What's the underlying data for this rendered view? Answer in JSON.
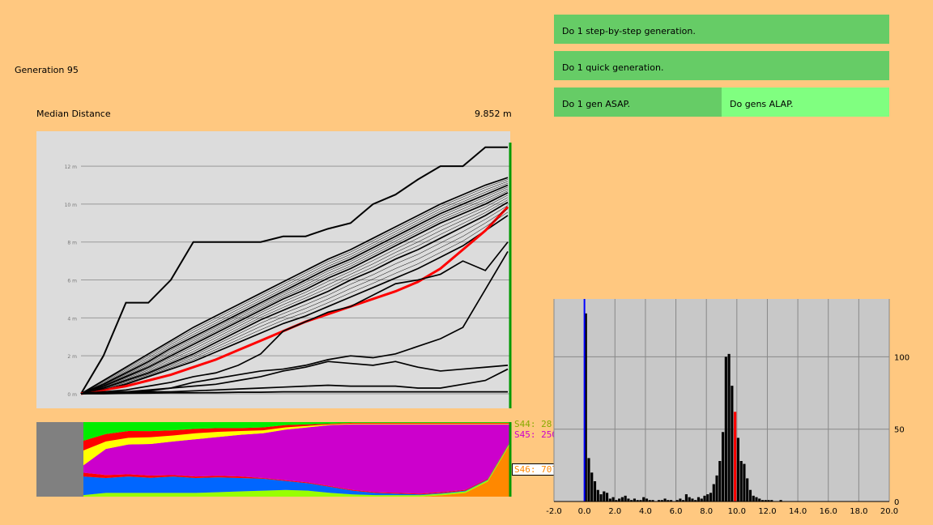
{
  "header": {
    "generation_label": "Generation 95"
  },
  "stat": {
    "label": "Median Distance",
    "value": "9.852 m"
  },
  "buttons": {
    "step_by_step": "Do 1 step-by-step generation.",
    "quick": "Do 1 quick generation.",
    "asap": "Do 1 gen ASAP.",
    "alap": "Do gens ALAP."
  },
  "species": [
    {
      "label": "S44: 28",
      "color": "#88aa00"
    },
    {
      "label": "S45: 250",
      "color": "#cc00cc"
    },
    {
      "label": "S46: 707",
      "color": "#ff8800"
    }
  ],
  "colors": {
    "background": "#ffc880",
    "button": "#66cc66",
    "button_alt": "#80ff80",
    "median_line": "#ff0000",
    "cursor_line": "#009900"
  },
  "chart_data": [
    {
      "type": "line",
      "title": "",
      "ylabel": "",
      "y_ticks": [
        "0 m",
        "2 m",
        "4 m",
        "6 m",
        "8 m",
        "10 m",
        "12 m"
      ],
      "x": [
        0,
        5,
        10,
        15,
        20,
        25,
        30,
        35,
        40,
        45,
        50,
        55,
        60,
        65,
        70,
        75,
        80,
        85,
        90,
        95
      ],
      "ylim": [
        0,
        13.5
      ],
      "xlim": [
        0,
        95
      ],
      "series": [
        {
          "values": [
            0,
            2,
            4.8,
            4.8,
            6,
            8,
            8,
            8,
            8,
            8.3,
            8.3,
            8.7,
            9,
            10,
            10.5,
            11.3,
            12,
            12,
            13,
            13
          ]
        },
        {
          "values": [
            0,
            0.7,
            1.4,
            2.1,
            2.8,
            3.5,
            4.1,
            4.7,
            5.3,
            5.9,
            6.5,
            7.1,
            7.6,
            8.2,
            8.8,
            9.4,
            10,
            10.5,
            11,
            11.4
          ]
        },
        {
          "values": [
            0,
            0.5,
            1.1,
            1.7,
            2.4,
            3.0,
            3.6,
            4.2,
            4.8,
            5.4,
            6.0,
            6.6,
            7.1,
            7.7,
            8.3,
            8.9,
            9.5,
            10,
            10.5,
            11.0
          ]
        },
        {
          "values": [
            0,
            0.4,
            0.9,
            1.4,
            2.0,
            2.6,
            3.2,
            3.8,
            4.4,
            5.0,
            5.5,
            6.1,
            6.6,
            7.2,
            7.8,
            8.4,
            9.0,
            9.5,
            10.0,
            10.6
          ]
        },
        {
          "values": [
            0,
            0.3,
            0.7,
            1.1,
            1.6,
            2.1,
            2.7,
            3.3,
            3.9,
            4.4,
            4.9,
            5.4,
            6.0,
            6.5,
            7.1,
            7.6,
            8.2,
            8.8,
            9.4,
            10.1
          ]
        },
        {
          "values": [
            0,
            0.2,
            0.5,
            0.9,
            1.3,
            1.7,
            2.2,
            2.7,
            3.2,
            3.7,
            4.1,
            4.6,
            5.1,
            5.6,
            6.1,
            6.6,
            7.2,
            7.8,
            8.6,
            9.4
          ]
        },
        {
          "name": "median",
          "values": [
            0,
            0.2,
            0.4,
            0.7,
            1.0,
            1.4,
            1.8,
            2.3,
            2.8,
            3.3,
            3.8,
            4.2,
            4.6,
            5.0,
            5.4,
            5.9,
            6.6,
            7.6,
            8.6,
            9.85
          ]
        },
        {
          "values": [
            0,
            0.1,
            0.2,
            0.4,
            0.6,
            0.9,
            1.1,
            1.5,
            2.1,
            3.3,
            3.8,
            4.3,
            4.6,
            5.2,
            5.8,
            6.0,
            6.3,
            7.0,
            6.5,
            8.0
          ]
        },
        {
          "values": [
            0,
            0.1,
            0.1,
            0.2,
            0.3,
            0.6,
            0.8,
            1.0,
            1.2,
            1.3,
            1.5,
            1.8,
            2.0,
            1.9,
            2.1,
            2.5,
            2.9,
            3.5,
            5.5,
            7.5
          ]
        },
        {
          "values": [
            0,
            0.05,
            0.1,
            0.15,
            0.3,
            0.4,
            0.5,
            0.7,
            0.9,
            1.2,
            1.4,
            1.7,
            1.6,
            1.5,
            1.7,
            1.4,
            1.2,
            1.3,
            1.4,
            1.5
          ]
        },
        {
          "values": [
            0,
            0.05,
            0.05,
            0.1,
            0.1,
            0.15,
            0.2,
            0.25,
            0.3,
            0.35,
            0.4,
            0.45,
            0.4,
            0.4,
            0.4,
            0.3,
            0.3,
            0.5,
            0.7,
            1.3
          ]
        },
        {
          "values": [
            0,
            0,
            0.02,
            0.03,
            0.05,
            0.05,
            0.06,
            0.08,
            0.08,
            0.1,
            0.1,
            0.1,
            0.1,
            0.1,
            0.1,
            0.1,
            0.1,
            0.1,
            0.1,
            0.1
          ]
        }
      ]
    },
    {
      "type": "area",
      "title": "",
      "x": [
        0,
        5,
        10,
        15,
        20,
        25,
        30,
        35,
        40,
        45,
        50,
        55,
        60,
        65,
        70,
        75,
        80,
        85,
        90,
        95
      ],
      "ylim": [
        0,
        1
      ],
      "series": [
        {
          "color": "#ff8800",
          "values": [
            0,
            0,
            0,
            0,
            0,
            0,
            0,
            0,
            0,
            0,
            0,
            0,
            0,
            0,
            0,
            0,
            0.02,
            0.05,
            0.2,
            0.71
          ]
        },
        {
          "color": "#99ff00",
          "values": [
            0.02,
            0.05,
            0.05,
            0.05,
            0.05,
            0.05,
            0.06,
            0.07,
            0.08,
            0.09,
            0.08,
            0.05,
            0.03,
            0.02,
            0.02,
            0.02,
            0.02,
            0.02,
            0.02,
            0.02
          ]
        },
        {
          "color": "#0066ff",
          "values": [
            0.25,
            0.2,
            0.22,
            0.2,
            0.22,
            0.2,
            0.2,
            0.18,
            0.16,
            0.12,
            0.1,
            0.08,
            0.05,
            0.03,
            0.02,
            0.01,
            0.01,
            0.01,
            0.01,
            0.01
          ]
        },
        {
          "color": "#ff0000",
          "values": [
            0.05,
            0.04,
            0.03,
            0.03,
            0.02,
            0.02,
            0.02,
            0.02,
            0.01,
            0.01,
            0.01,
            0.01,
            0.01,
            0.01,
            0.01,
            0.01,
            0.01,
            0.01,
            0.01,
            0.01
          ]
        },
        {
          "color": "#cc00cc",
          "values": [
            0.1,
            0.35,
            0.4,
            0.42,
            0.45,
            0.5,
            0.52,
            0.56,
            0.6,
            0.68,
            0.74,
            0.82,
            0.88,
            0.91,
            0.92,
            0.93,
            0.9,
            0.87,
            0.72,
            0.22
          ]
        },
        {
          "color": "#ffff00",
          "values": [
            0.2,
            0.1,
            0.09,
            0.09,
            0.08,
            0.08,
            0.07,
            0.05,
            0.04,
            0.03,
            0.02,
            0.01,
            0.01,
            0.01,
            0.01,
            0.01,
            0.01,
            0.01,
            0.01,
            0.01
          ]
        },
        {
          "color": "#ff0000",
          "values": [
            0.13,
            0.1,
            0.09,
            0.08,
            0.07,
            0.06,
            0.05,
            0.04,
            0.04,
            0.03,
            0.02,
            0.01,
            0.01,
            0.01,
            0.01,
            0.01,
            0.01,
            0.01,
            0.01,
            0.01
          ]
        },
        {
          "color": "#00ee00",
          "values": [
            0.25,
            0.16,
            0.12,
            0.12,
            0.11,
            0.09,
            0.08,
            0.08,
            0.07,
            0.04,
            0.03,
            0.02,
            0.01,
            0.01,
            0.01,
            0.01,
            0.01,
            0.01,
            0.01,
            0.01
          ]
        }
      ]
    },
    {
      "type": "bar",
      "title": "",
      "x_ticks": [
        "-2.0",
        "0.0",
        "2.0",
        "4.0",
        "6.0",
        "8.0",
        "10.0",
        "12.0",
        "14.0",
        "16.0",
        "18.0",
        "20.0"
      ],
      "y_ticks": [
        "0",
        "50",
        "100"
      ],
      "xlim": [
        -2.0,
        20.0
      ],
      "ylim": [
        0,
        140
      ],
      "bin_width": 0.2,
      "bin_start": 0.0,
      "counts": [
        130,
        30,
        20,
        14,
        8,
        5,
        7,
        6,
        2,
        3,
        1,
        2,
        3,
        4,
        2,
        1,
        2,
        1,
        1,
        3,
        2,
        1,
        1,
        0,
        1,
        1,
        2,
        1,
        1,
        0,
        1,
        2,
        1,
        5,
        3,
        2,
        1,
        3,
        2,
        4,
        5,
        6,
        12,
        18,
        28,
        48,
        100,
        102,
        80,
        62,
        44,
        28,
        26,
        16,
        8,
        4,
        3,
        2,
        1,
        1,
        1,
        1,
        0,
        0,
        1
      ],
      "median_value": 9.852,
      "markers": [
        {
          "name": "blue line",
          "x": 0.0,
          "color": "#0000ff"
        },
        {
          "name": "median",
          "x": 9.852,
          "color": "#ff0000"
        }
      ]
    }
  ]
}
